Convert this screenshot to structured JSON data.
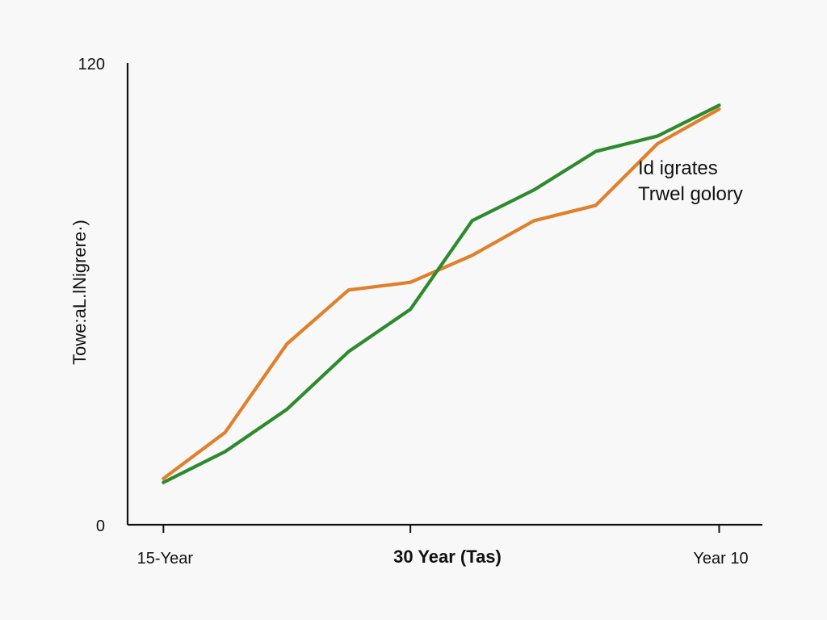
{
  "chart_data": {
    "type": "line",
    "x": [
      0,
      1,
      2,
      3,
      4,
      5,
      6,
      7,
      8,
      9
    ],
    "series": [
      {
        "color": "#e0802a",
        "values": [
          12,
          24,
          47,
          61,
          63,
          70,
          79,
          83,
          99,
          108
        ]
      },
      {
        "color": "#2e8a2e",
        "values": [
          11,
          19,
          30,
          45,
          56,
          79,
          87,
          97,
          101,
          109
        ]
      }
    ],
    "xticks": [
      {
        "x": 0,
        "label": "15-Year"
      },
      {
        "x": 4,
        "label": ""
      },
      {
        "x": 9,
        "label": "Year 10"
      }
    ],
    "yticks": [
      {
        "y": 0,
        "label": "0"
      },
      {
        "y": 120,
        "label": "120"
      }
    ],
    "xlabel": "30 Year (Tas)",
    "ylabel": "Towe:aL.lNigrere·)",
    "annotation": [
      "Id igrates",
      "Trwel golory"
    ],
    "xlim": [
      -0.58,
      9.7
    ],
    "ylim": [
      0,
      120
    ],
    "grid": false,
    "colors": {
      "background": "#f7f8f7",
      "axis": "#111111"
    }
  }
}
